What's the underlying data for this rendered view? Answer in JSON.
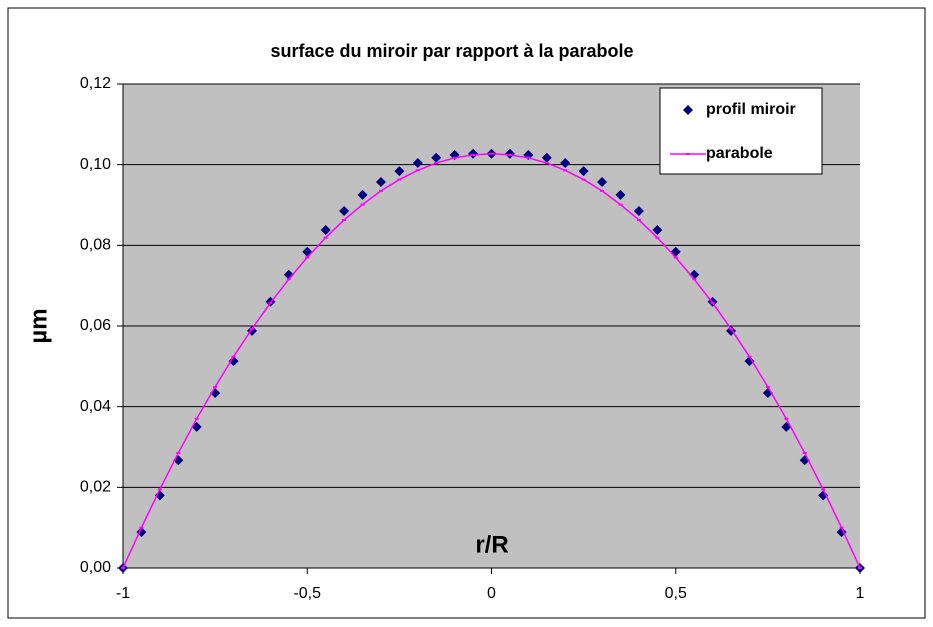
{
  "chart_data": {
    "type": "scatter-line",
    "title": "surface du miroir par rapport à la parabole",
    "x_label": "r/R",
    "y_label": "µm",
    "x": [
      -1,
      -0.95,
      -0.9,
      -0.85,
      -0.8,
      -0.75,
      -0.7,
      -0.65,
      -0.6,
      -0.55,
      -0.5,
      -0.45,
      -0.4,
      -0.35,
      -0.3,
      -0.25,
      -0.2,
      -0.15,
      -0.1,
      -0.05,
      0,
      0.05,
      0.1,
      0.15,
      0.2,
      0.25,
      0.3,
      0.35,
      0.4,
      0.45,
      0.5,
      0.55,
      0.6,
      0.65,
      0.7,
      0.75,
      0.8,
      0.85,
      0.9,
      0.95,
      1
    ],
    "series": [
      {
        "name": "profil miroir",
        "color": "#000080",
        "marker": "diamond",
        "values": [
          0,
          0.0089,
          0.018,
          0.0267,
          0.035,
          0.0434,
          0.0513,
          0.0588,
          0.066,
          0.0727,
          0.0784,
          0.0838,
          0.0885,
          0.0925,
          0.0957,
          0.0984,
          0.1004,
          0.1017,
          0.1024,
          0.1027,
          0.1027,
          0.1027,
          0.1024,
          0.1017,
          0.1004,
          0.0984,
          0.0957,
          0.0925,
          0.0885,
          0.0838,
          0.0784,
          0.0727,
          0.066,
          0.0588,
          0.0513,
          0.0434,
          0.035,
          0.0267,
          0.018,
          0.0089,
          0
        ]
      },
      {
        "name": "parabole",
        "color": "#ff00ff",
        "marker": "line",
        "values": [
          0,
          0.01,
          0.0195,
          0.0285,
          0.037,
          0.0449,
          0.0524,
          0.0593,
          0.0657,
          0.0716,
          0.077,
          0.0819,
          0.0863,
          0.0901,
          0.0935,
          0.0963,
          0.0986,
          0.1004,
          0.1017,
          0.1024,
          0.1027,
          0.1024,
          0.1017,
          0.1004,
          0.0986,
          0.0963,
          0.0935,
          0.0901,
          0.0863,
          0.0819,
          0.077,
          0.0716,
          0.0657,
          0.0593,
          0.0524,
          0.0449,
          0.037,
          0.0285,
          0.0195,
          0.01,
          0
        ]
      }
    ],
    "xlim": [
      -1,
      1
    ],
    "ylim": [
      0,
      0.12
    ],
    "xticks": [
      -1,
      {
        "value": -0.5,
        "label": "-0,5"
      },
      0,
      {
        "value": 0.5,
        "label": "0,5"
      },
      1
    ],
    "yticks": [
      {
        "value": 0,
        "label": "0,00"
      },
      {
        "value": 0.02,
        "label": "0,02"
      },
      {
        "value": 0.04,
        "label": "0,04"
      },
      {
        "value": 0.06,
        "label": "0,06"
      },
      {
        "value": 0.08,
        "label": "0,08"
      },
      {
        "value": 0.1,
        "label": "0,10"
      },
      {
        "value": 0.12,
        "label": "0,12"
      }
    ],
    "grid": true,
    "legend": "top-right"
  }
}
